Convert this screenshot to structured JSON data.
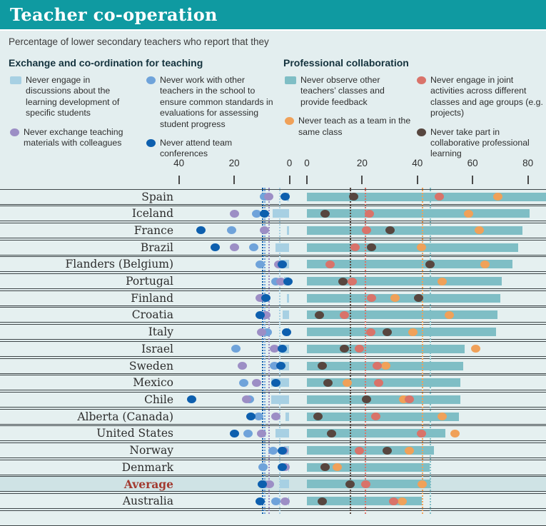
{
  "title": "Teacher co-operation",
  "subtitle": "Percentage of lower secondary teachers who report that they",
  "colors": {
    "header": "#0f9aa1",
    "page_bg": "#e3eeef",
    "band_bg": "#e5f0f0",
    "band_avg_bg": "#cfe3e5",
    "average_label": "#a33a30",
    "light_blue": "#a7d0e3",
    "purple": "#9c8ec5",
    "medium_blue": "#6fa3da",
    "dark_blue": "#0d5fae",
    "teal": "#7fbec5",
    "orange": "#f0a159",
    "salmon": "#d9736a",
    "brown": "#57463f"
  },
  "legend": {
    "group1": {
      "heading": "Exchange and co-ordination for teaching",
      "items": [
        {
          "marker": "square",
          "color": "light_blue",
          "icon": "light-blue-bar-marker",
          "label": "Never engage in discussions about the learning development of specific students",
          "column": "A"
        },
        {
          "marker": "circle",
          "color": "purple",
          "icon": "purple-dot-marker",
          "label": "Never exchange teaching materials with colleagues",
          "column": "A"
        },
        {
          "marker": "circle",
          "color": "medium_blue",
          "icon": "medium-blue-dot-marker",
          "label": "Never work with other teachers in the school to ensure common standards in evaluations for assessing student progress",
          "column": "B"
        },
        {
          "marker": "circle",
          "color": "dark_blue",
          "icon": "dark-blue-dot-marker",
          "label": "Never attend team conferences",
          "column": "B"
        }
      ]
    },
    "group2": {
      "heading": "Professional collaboration",
      "items": [
        {
          "marker": "square",
          "color": "teal",
          "icon": "teal-bar-marker",
          "label": "Never observe other teachers’ classes and provide feedback",
          "column": "C"
        },
        {
          "marker": "circle",
          "color": "orange",
          "icon": "orange-dot-marker",
          "label": "Never teach as a team in the same class",
          "column": "C"
        },
        {
          "marker": "circle",
          "color": "salmon",
          "icon": "salmon-dot-marker",
          "label": "Never engage in joint activities across different classes and age groups (e.g. projects)",
          "column": "D"
        },
        {
          "marker": "circle",
          "color": "brown",
          "icon": "brown-dot-marker",
          "label": "Never take part in collaborative professional learning",
          "column": "D"
        }
      ]
    }
  },
  "chart_data": {
    "type": "bar",
    "subtype": "diverging bar + dot plot, two mirrored percentage axes",
    "xlabel": "",
    "ylabel": "",
    "axis": {
      "left_ticks": [
        40,
        20,
        0
      ],
      "right_ticks": [
        0,
        20,
        40,
        60,
        80
      ],
      "left_range": [
        0,
        45
      ],
      "right_range": [
        0,
        87
      ],
      "grid": "dotted average reference lines per series"
    },
    "series_meta": [
      {
        "key": "never_discussions",
        "label": "Never engage in discussions about the learning development of specific students",
        "side": "left",
        "mark": "bar",
        "color": "light_blue"
      },
      {
        "key": "never_exchange_materials",
        "label": "Never exchange teaching materials with colleagues",
        "side": "left",
        "mark": "dot",
        "color": "purple"
      },
      {
        "key": "never_common_standards",
        "label": "Never work with other teachers in the school to ensure common standards in evaluations for assessing student progress",
        "side": "left",
        "mark": "dot",
        "color": "medium_blue"
      },
      {
        "key": "never_team_conferences",
        "label": "Never attend team conferences",
        "side": "left",
        "mark": "dot",
        "color": "dark_blue"
      },
      {
        "key": "never_observe",
        "label": "Never observe other teachers’ classes and provide feedback",
        "side": "right",
        "mark": "bar",
        "color": "teal"
      },
      {
        "key": "never_team_teach",
        "label": "Never teach as a team in the same class",
        "side": "right",
        "mark": "dot",
        "color": "orange"
      },
      {
        "key": "never_joint_activities",
        "label": "Never engage in joint activities across different classes and age groups (e.g. projects)",
        "side": "right",
        "mark": "dot",
        "color": "salmon"
      },
      {
        "key": "never_collaborative_learning",
        "label": "Never take part in collaborative professional learning",
        "side": "right",
        "mark": "dot",
        "color": "brown"
      }
    ],
    "rows": [
      {
        "label": "Spain",
        "never_discussions": 1,
        "never_exchange_materials": 7.5,
        "never_common_standards": 9,
        "never_team_conferences": 1.5,
        "never_observe": 87,
        "never_team_teach": 69,
        "never_joint_activities": 48,
        "never_collaborative_learning": 17
      },
      {
        "label": "Iceland",
        "never_discussions": 6,
        "never_exchange_materials": 20,
        "never_common_standards": 12,
        "never_team_conferences": 9,
        "never_observe": 80.5,
        "never_team_teach": 58.5,
        "never_joint_activities": 22.5,
        "never_collaborative_learning": 6.5
      },
      {
        "label": "France",
        "never_discussions": 1,
        "never_exchange_materials": 9,
        "never_common_standards": 21,
        "never_team_conferences": 32,
        "never_observe": 78,
        "never_team_teach": 62.5,
        "never_joint_activities": 21.5,
        "never_collaborative_learning": 30
      },
      {
        "label": "Brazil",
        "never_discussions": 5,
        "never_exchange_materials": 20,
        "never_common_standards": 13,
        "never_team_conferences": 27,
        "never_observe": 76.5,
        "never_team_teach": 41.5,
        "never_joint_activities": 17.5,
        "never_collaborative_learning": 23.5
      },
      {
        "label": "Flanders (Belgium)",
        "never_discussions": 3.5,
        "never_exchange_materials": 4,
        "never_common_standards": 10.5,
        "never_team_conferences": 2.5,
        "never_observe": 74.5,
        "never_team_teach": 64.5,
        "never_joint_activities": 8.5,
        "never_collaborative_learning": 44.5
      },
      {
        "label": "Portugal",
        "never_discussions": 2,
        "never_exchange_materials": 3,
        "never_common_standards": 5,
        "never_team_conferences": 0.5,
        "never_observe": 70.5,
        "never_team_teach": 49,
        "never_joint_activities": 16.5,
        "never_collaborative_learning": 13
      },
      {
        "label": "Finland",
        "never_discussions": 1,
        "never_exchange_materials": 10.5,
        "never_common_standards": 10,
        "never_team_conferences": 8.5,
        "never_observe": 70,
        "never_team_teach": 32,
        "never_joint_activities": 23.5,
        "never_collaborative_learning": 40.5
      },
      {
        "label": "Croatia",
        "never_discussions": 2.5,
        "never_exchange_materials": 8.5,
        "never_common_standards": 8.5,
        "never_team_conferences": 10.5,
        "never_observe": 69,
        "never_team_teach": 51.5,
        "never_joint_activities": 13.5,
        "never_collaborative_learning": 4.5
      },
      {
        "label": "Italy",
        "never_discussions": 0.5,
        "never_exchange_materials": 10,
        "never_common_standards": 8,
        "never_team_conferences": 1,
        "never_observe": 68.5,
        "never_team_teach": 38.5,
        "never_joint_activities": 23,
        "never_collaborative_learning": 29
      },
      {
        "label": "Israel",
        "never_discussions": 3,
        "never_exchange_materials": 5.5,
        "never_common_standards": 19.5,
        "never_team_conferences": 2.5,
        "never_observe": 57,
        "never_team_teach": 61,
        "never_joint_activities": 19,
        "never_collaborative_learning": 13.5
      },
      {
        "label": "Sweden",
        "never_discussions": 3,
        "never_exchange_materials": 17,
        "never_common_standards": 5.5,
        "never_team_conferences": 3,
        "never_observe": 56.5,
        "never_team_teach": 28.5,
        "never_joint_activities": 25.5,
        "never_collaborative_learning": 5.5
      },
      {
        "label": "Mexico",
        "never_discussions": 6.5,
        "never_exchange_materials": 12,
        "never_common_standards": 16.5,
        "never_team_conferences": 5,
        "never_observe": 55.5,
        "never_team_teach": 14.5,
        "never_joint_activities": 26,
        "never_collaborative_learning": 7.5
      },
      {
        "label": "Chile",
        "never_discussions": 6.5,
        "never_exchange_materials": 15.5,
        "never_common_standards": 14.5,
        "never_team_conferences": 35.5,
        "never_observe": 55.5,
        "never_team_teach": 35,
        "never_joint_activities": 37,
        "never_collaborative_learning": 21.5
      },
      {
        "label": "Alberta (Canada)",
        "never_discussions": 1.5,
        "never_exchange_materials": 5,
        "never_common_standards": 11,
        "never_team_conferences": 14,
        "never_observe": 55,
        "never_team_teach": 49,
        "never_joint_activities": 25,
        "never_collaborative_learning": 4
      },
      {
        "label": "United States",
        "never_discussions": 5,
        "never_exchange_materials": 10,
        "never_common_standards": 15,
        "never_team_conferences": 20,
        "never_observe": 50,
        "never_team_teach": 53.5,
        "never_joint_activities": 41.5,
        "never_collaborative_learning": 9
      },
      {
        "label": "Norway",
        "never_discussions": 2,
        "never_exchange_materials": 2,
        "never_common_standards": 6,
        "never_team_conferences": 2.5,
        "never_observe": 46,
        "never_team_teach": 37,
        "never_joint_activities": 19,
        "never_collaborative_learning": 29
      },
      {
        "label": "Denmark",
        "never_discussions": 0.5,
        "never_exchange_materials": 1.5,
        "never_common_standards": 9.5,
        "never_team_conferences": 2.5,
        "never_observe": 44.5,
        "never_team_teach": 11,
        "never_joint_activities": 6.5,
        "never_collaborative_learning": 6.5
      },
      {
        "label": "Average",
        "highlight": true,
        "never_discussions": 3.5,
        "never_exchange_materials": 7.3,
        "never_common_standards": 9,
        "never_team_conferences": 9.7,
        "never_observe": 44.8,
        "never_team_teach": 41.8,
        "never_joint_activities": 21.3,
        "never_collaborative_learning": 15.7
      },
      {
        "label": "Australia",
        "never_discussions": 0.5,
        "never_exchange_materials": 1.5,
        "never_common_standards": 5,
        "never_team_conferences": 10.5,
        "never_observe": 41.5,
        "never_team_teach": 34.5,
        "never_joint_activities": 31.5,
        "never_collaborative_learning": 5.5
      },
      {
        "label": "",
        "partial": true
      }
    ],
    "averages": {
      "never_discussions": 3.5,
      "never_exchange_materials": 7.3,
      "never_common_standards": 9,
      "never_team_conferences": 9.7,
      "never_observe": 44.8,
      "never_team_teach": 41.8,
      "never_joint_activities": 21.3,
      "never_collaborative_learning": 15.7
    }
  }
}
